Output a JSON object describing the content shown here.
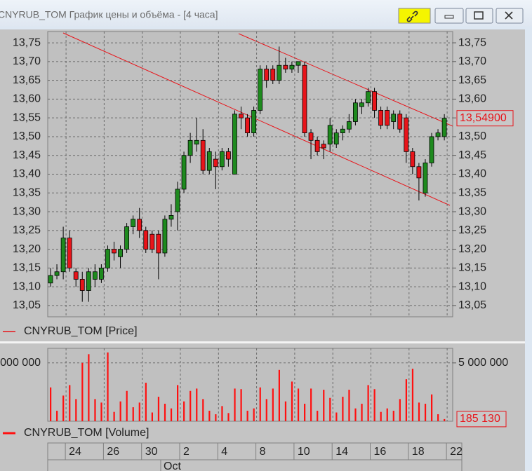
{
  "window": {
    "title": "CNYRUB_TOM График цены и объёма - [4 часа]"
  },
  "chart_data": [
    {
      "type": "candlestick",
      "legend": "CNYRUB_TOM [Price]",
      "month": "Oct",
      "categories": [
        null,
        null,
        "24",
        null,
        null,
        null,
        null,
        null,
        "26",
        null,
        null,
        null,
        null,
        null,
        "30",
        null,
        null,
        null,
        null,
        null,
        "2",
        null,
        null,
        null,
        null,
        null,
        "4",
        null,
        null,
        null,
        null,
        null,
        "8",
        null,
        null,
        null,
        null,
        null,
        "10",
        null,
        null,
        null,
        null,
        null,
        "14",
        null,
        null,
        null,
        null,
        null,
        "16",
        null,
        null,
        null,
        null,
        null,
        "18",
        null,
        null,
        null,
        null,
        null,
        "22"
      ],
      "open": [
        13.11,
        13.13,
        13.14,
        13.23,
        13.14,
        13.12,
        13.09,
        13.12,
        13.12,
        13.15,
        13.2,
        13.18,
        13.2,
        13.26,
        13.28,
        13.25,
        13.24,
        13.24,
        13.19,
        13.28,
        13.3,
        13.36,
        13.45,
        13.48,
        13.49,
        13.41,
        13.44,
        13.42,
        13.46,
        13.4,
        13.56,
        13.55,
        13.51,
        13.57,
        13.68,
        13.68,
        13.65,
        13.69,
        13.68,
        13.69,
        13.69,
        13.51,
        13.49,
        13.48,
        13.48,
        13.48,
        13.51,
        13.52,
        13.54,
        13.58,
        13.59,
        13.62,
        13.57,
        13.57,
        13.54,
        13.56,
        13.55,
        13.46,
        13.42,
        13.35,
        13.43,
        13.5,
        13.5
      ],
      "high": [
        13.15,
        13.16,
        13.26,
        13.25,
        13.15,
        13.14,
        13.15,
        13.16,
        13.16,
        13.21,
        13.22,
        13.21,
        13.27,
        13.29,
        13.31,
        13.26,
        13.25,
        13.25,
        13.29,
        13.32,
        13.38,
        13.46,
        13.51,
        13.55,
        13.52,
        13.47,
        13.46,
        13.47,
        13.47,
        13.57,
        13.58,
        13.56,
        13.58,
        13.69,
        13.69,
        13.69,
        13.74,
        13.71,
        13.7,
        13.7,
        13.7,
        13.52,
        13.5,
        13.49,
        13.55,
        13.52,
        13.53,
        13.56,
        13.6,
        13.6,
        13.63,
        13.63,
        13.58,
        13.58,
        13.57,
        13.57,
        13.56,
        13.47,
        13.43,
        13.44,
        13.51,
        13.52,
        13.56
      ],
      "low": [
        13.1,
        13.12,
        13.12,
        13.14,
        13.1,
        13.06,
        13.06,
        13.1,
        13.11,
        13.14,
        13.17,
        13.15,
        13.19,
        13.24,
        13.23,
        13.19,
        13.19,
        13.12,
        13.18,
        13.26,
        13.25,
        13.35,
        13.43,
        13.46,
        13.4,
        13.4,
        13.36,
        13.41,
        13.42,
        13.4,
        13.52,
        13.5,
        13.5,
        13.56,
        13.63,
        13.64,
        13.64,
        13.67,
        13.67,
        13.67,
        13.5,
        13.44,
        13.45,
        13.44,
        13.46,
        13.47,
        13.49,
        13.51,
        13.53,
        13.56,
        13.58,
        13.55,
        13.52,
        13.52,
        13.52,
        13.51,
        13.43,
        13.4,
        13.33,
        13.34,
        13.42,
        13.49,
        13.49
      ],
      "close": [
        13.13,
        13.14,
        13.23,
        13.15,
        13.12,
        13.09,
        13.14,
        13.14,
        13.15,
        13.2,
        13.19,
        13.2,
        13.26,
        13.28,
        13.25,
        13.2,
        13.2,
        13.19,
        13.28,
        13.29,
        13.36,
        13.45,
        13.49,
        13.49,
        13.41,
        13.46,
        13.42,
        13.46,
        13.44,
        13.56,
        13.55,
        13.51,
        13.57,
        13.68,
        13.65,
        13.65,
        13.69,
        13.68,
        13.69,
        13.7,
        13.51,
        13.49,
        13.46,
        13.47,
        13.53,
        13.51,
        13.52,
        13.54,
        13.59,
        13.59,
        13.62,
        13.57,
        13.53,
        13.53,
        13.56,
        13.52,
        13.46,
        13.42,
        13.39,
        13.43,
        13.5,
        13.51,
        13.549
      ],
      "up_color": "#1e8a1e",
      "down_color": "#e8141a",
      "ylim": [
        13.02,
        13.78
      ],
      "yticks": [
        {
          "value": 13.05,
          "label": "13,05"
        },
        {
          "value": 13.1,
          "label": "13,10"
        },
        {
          "value": 13.15,
          "label": "13,15"
        },
        {
          "value": 13.2,
          "label": "13,20"
        },
        {
          "value": 13.25,
          "label": "13,25"
        },
        {
          "value": 13.3,
          "label": "13,30"
        },
        {
          "value": 13.35,
          "label": "13,35"
        },
        {
          "value": 13.4,
          "label": "13,40"
        },
        {
          "value": 13.45,
          "label": "13,45"
        },
        {
          "value": 13.5,
          "label": "13,50"
        },
        {
          "value": 13.55,
          "label": "13,55"
        },
        {
          "value": 13.6,
          "label": "13,60"
        },
        {
          "value": 13.65,
          "label": "13,65"
        },
        {
          "value": 13.7,
          "label": "13,70"
        },
        {
          "value": 13.75,
          "label": "13,75"
        }
      ],
      "grid": true,
      "last": {
        "value": 13.549,
        "label": "13,54900"
      }
    },
    {
      "type": "bar",
      "legend": "CNYRUB_TOM [Volume]",
      "color": "#ff1010",
      "values": [
        2900000,
        900000,
        2200000,
        3100000,
        1900000,
        5000000,
        5750000,
        1900000,
        1600000,
        5900000,
        800000,
        1700000,
        2600000,
        1200000,
        1600000,
        3300000,
        750000,
        2100000,
        1500000,
        1100000,
        3100000,
        1700000,
        2600000,
        2800000,
        1900000,
        900000,
        600000,
        1300000,
        700000,
        2800000,
        2750000,
        900000,
        1100000,
        2900000,
        1900000,
        2800000,
        4400000,
        1700000,
        3400000,
        2800000,
        1500000,
        2800000,
        900000,
        2700000,
        2000000,
        750000,
        2100000,
        2700000,
        1100000,
        1500000,
        3100000,
        2750000,
        800000,
        1100000,
        900000,
        1900000,
        3600000,
        4500000,
        1600000,
        1500000,
        2300000,
        600000,
        185130
      ],
      "ylim": [
        0,
        6250000
      ],
      "yticks": [
        {
          "value": 5000000,
          "label": "5 000 000"
        }
      ],
      "grid": true,
      "last": {
        "value": 185130,
        "label": "185 130"
      }
    }
  ]
}
